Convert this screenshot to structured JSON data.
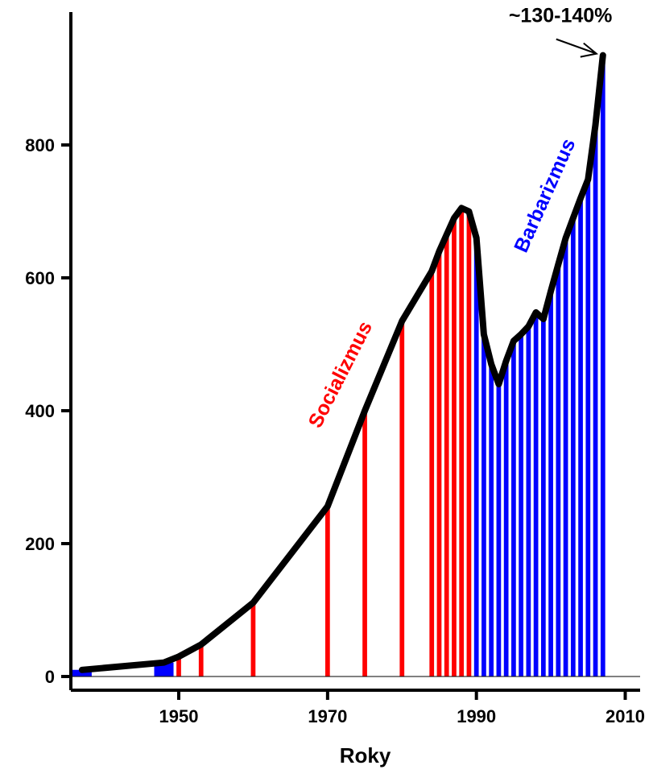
{
  "chart_data": {
    "type": "bar",
    "xlabel": "Roky",
    "ylabel": "",
    "xlim": [
      1935.5,
      2012
    ],
    "ylim": [
      0,
      1000
    ],
    "x_ticks": [
      1950,
      1970,
      1990,
      2010
    ],
    "y_ticks": [
      0,
      200,
      400,
      600,
      800
    ],
    "grid": false,
    "line": {
      "x": [
        1937,
        1948,
        1950,
        1953,
        1960,
        1970,
        1975,
        1980,
        1984,
        1985,
        1986,
        1987,
        1988,
        1989,
        1990,
        1991,
        1992,
        1993,
        1994,
        1995,
        1996,
        1997,
        1998,
        1999,
        2000,
        2001,
        2002,
        2003,
        2004,
        2005,
        2006,
        2007
      ],
      "y": [
        10,
        21,
        30,
        48,
        111,
        256,
        400,
        535,
        610,
        640,
        665,
        690,
        705,
        700,
        660,
        515,
        470,
        440,
        475,
        505,
        515,
        527,
        548,
        538,
        580,
        620,
        660,
        690,
        720,
        748,
        830,
        935
      ]
    },
    "bars": [
      {
        "x": 1937,
        "y": 10,
        "color": "#0000ff"
      },
      {
        "x": 1948,
        "y": 21,
        "color": "#0000ff"
      },
      {
        "x": 1950,
        "y": 30,
        "color": "#ff0000"
      },
      {
        "x": 1953,
        "y": 48,
        "color": "#ff0000"
      },
      {
        "x": 1960,
        "y": 111,
        "color": "#ff0000"
      },
      {
        "x": 1970,
        "y": 256,
        "color": "#ff0000"
      },
      {
        "x": 1975,
        "y": 400,
        "color": "#ff0000"
      },
      {
        "x": 1980,
        "y": 535,
        "color": "#ff0000"
      },
      {
        "x": 1984,
        "y": 610,
        "color": "#ff0000"
      },
      {
        "x": 1985,
        "y": 640,
        "color": "#ff0000"
      },
      {
        "x": 1986,
        "y": 665,
        "color": "#ff0000"
      },
      {
        "x": 1987,
        "y": 690,
        "color": "#ff0000"
      },
      {
        "x": 1988,
        "y": 705,
        "color": "#ff0000"
      },
      {
        "x": 1989,
        "y": 700,
        "color": "#ff0000"
      },
      {
        "x": 1990,
        "y": 660,
        "color": "#0000ff"
      },
      {
        "x": 1991,
        "y": 515,
        "color": "#0000ff"
      },
      {
        "x": 1992,
        "y": 470,
        "color": "#0000ff"
      },
      {
        "x": 1993,
        "y": 440,
        "color": "#0000ff"
      },
      {
        "x": 1994,
        "y": 475,
        "color": "#0000ff"
      },
      {
        "x": 1995,
        "y": 505,
        "color": "#0000ff"
      },
      {
        "x": 1996,
        "y": 515,
        "color": "#0000ff"
      },
      {
        "x": 1997,
        "y": 527,
        "color": "#0000ff"
      },
      {
        "x": 1998,
        "y": 548,
        "color": "#0000ff"
      },
      {
        "x": 1999,
        "y": 538,
        "color": "#0000ff"
      },
      {
        "x": 2000,
        "y": 580,
        "color": "#0000ff"
      },
      {
        "x": 2001,
        "y": 620,
        "color": "#0000ff"
      },
      {
        "x": 2002,
        "y": 660,
        "color": "#0000ff"
      },
      {
        "x": 2003,
        "y": 690,
        "color": "#0000ff"
      },
      {
        "x": 2004,
        "y": 720,
        "color": "#0000ff"
      },
      {
        "x": 2005,
        "y": 748,
        "color": "#0000ff"
      },
      {
        "x": 2006,
        "y": 830,
        "color": "#0000ff"
      },
      {
        "x": 2007,
        "y": 935,
        "color": "#0000ff"
      }
    ],
    "annotations": [
      {
        "text": "Socializmus",
        "x": 1972.5,
        "y": 450,
        "rotate": -63,
        "color": "#ff0000"
      },
      {
        "text": "Barbarizmus",
        "x": 2000,
        "y": 720,
        "rotate": -66,
        "color": "#0000ff"
      },
      {
        "text": "~130-140%",
        "x": 2001.3,
        "y": 985,
        "rotate": 0,
        "color": "#000000"
      }
    ]
  }
}
